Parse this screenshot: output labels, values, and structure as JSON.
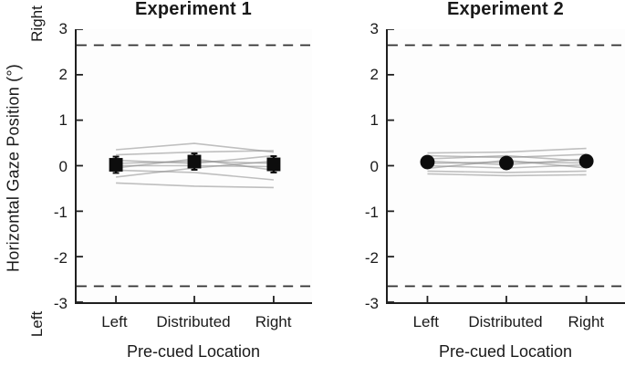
{
  "figure": {
    "ylabel": "Horizontal Gaze Position (°)",
    "y_direction_top": "Right",
    "y_direction_bottom": "Left"
  },
  "colors": {
    "axis": "#1f1f1f",
    "text": "#1a1a1a",
    "subject_line": "#8c8c8c",
    "reference_line": "#2e2e2e",
    "mean_marker": "#0d0d0d",
    "background": "#ffffff"
  },
  "chart_data": [
    {
      "type": "line",
      "title": "Experiment 1",
      "xlabel": "Pre-cued Location",
      "ylabel": "Horizontal Gaze Position (°)",
      "categories": [
        "Left",
        "Distributed",
        "Right"
      ],
      "ylim": [
        -3,
        3
      ],
      "yticks": [
        3,
        2,
        1,
        0,
        -1,
        -2,
        -3
      ],
      "reference_lines": [
        2.65,
        -2.65
      ],
      "grid": false,
      "legend": "none",
      "mean_marker": "square",
      "series": [
        {
          "name": "subject-1",
          "values": [
            0.35,
            0.49,
            0.3
          ]
        },
        {
          "name": "subject-2",
          "values": [
            0.24,
            0.3,
            0.33
          ]
        },
        {
          "name": "subject-3",
          "values": [
            0.12,
            0.05,
            0.22
          ]
        },
        {
          "name": "subject-4",
          "values": [
            0.05,
            0.1,
            0.05
          ]
        },
        {
          "name": "subject-5",
          "values": [
            0.0,
            0.0,
            -0.02
          ]
        },
        {
          "name": "subject-6",
          "values": [
            -0.05,
            0.15,
            -0.1
          ]
        },
        {
          "name": "subject-7",
          "values": [
            -0.1,
            -0.15,
            -0.31
          ]
        },
        {
          "name": "subject-8",
          "values": [
            -0.25,
            -0.05,
            0.1
          ]
        },
        {
          "name": "subject-9",
          "values": [
            -0.38,
            -0.45,
            -0.48
          ]
        }
      ],
      "mean": {
        "values": [
          0.02,
          0.09,
          0.03
        ],
        "errors": [
          0.18,
          0.18,
          0.18
        ]
      }
    },
    {
      "type": "line",
      "title": "Experiment 2",
      "xlabel": "Pre-cued Location",
      "ylabel": "Horizontal Gaze Position (°)",
      "categories": [
        "Left",
        "Distributed",
        "Right"
      ],
      "ylim": [
        -3,
        3
      ],
      "yticks": [
        3,
        2,
        1,
        0,
        -1,
        -2,
        -3
      ],
      "reference_lines": [
        2.65,
        -2.65
      ],
      "grid": false,
      "legend": "none",
      "mean_marker": "circle",
      "series": [
        {
          "name": "subject-1",
          "values": [
            0.28,
            0.3,
            0.38
          ]
        },
        {
          "name": "subject-2",
          "values": [
            0.22,
            0.18,
            0.25
          ]
        },
        {
          "name": "subject-3",
          "values": [
            0.15,
            0.22,
            0.1
          ]
        },
        {
          "name": "subject-4",
          "values": [
            0.1,
            0.02,
            0.15
          ]
        },
        {
          "name": "subject-5",
          "values": [
            0.05,
            0.08,
            0.06
          ]
        },
        {
          "name": "subject-6",
          "values": [
            0.0,
            -0.05,
            0.02
          ]
        },
        {
          "name": "subject-7",
          "values": [
            -0.06,
            0.12,
            -0.05
          ]
        },
        {
          "name": "subject-8",
          "values": [
            -0.12,
            -0.15,
            -0.12
          ]
        },
        {
          "name": "subject-9",
          "values": [
            -0.18,
            -0.22,
            -0.2
          ]
        }
      ],
      "mean": {
        "values": [
          0.08,
          0.06,
          0.1
        ],
        "errors": [
          0.12,
          0.12,
          0.12
        ]
      }
    }
  ]
}
